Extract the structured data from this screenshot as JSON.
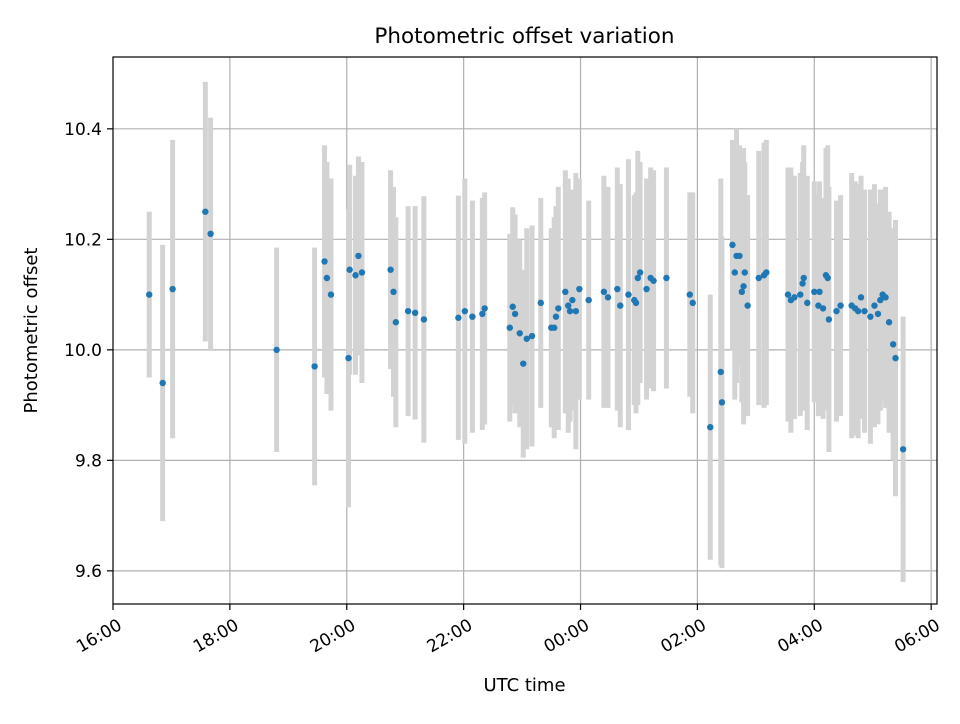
{
  "chart_data": {
    "type": "scatter",
    "title": "Photometric offset variation",
    "xlabel": "UTC time",
    "ylabel": "Photometric offset",
    "grid": true,
    "x_ticks": [
      "16:00",
      "18:00",
      "20:00",
      "22:00",
      "00:00",
      "02:00",
      "04:00",
      "06:00"
    ],
    "y_ticks": [
      "9.6",
      "9.8",
      "10.0",
      "10.2",
      "10.4"
    ],
    "x_unit": "hours since 16:00 UTC",
    "xlim": [
      0,
      14.1
    ],
    "ylim": [
      9.54,
      10.53
    ],
    "colors": {
      "points": "#1f77b4",
      "errorbars": "#d3d3d3",
      "grid": "#b0b0b0"
    },
    "points": [
      [
        0.62,
        10.1,
        0.15
      ],
      [
        0.85,
        9.94,
        0.25
      ],
      [
        1.02,
        10.11,
        0.27
      ],
      [
        1.58,
        10.25,
        0.235
      ],
      [
        1.67,
        10.21,
        0.21
      ],
      [
        2.8,
        10.0,
        0.185
      ],
      [
        3.45,
        9.97,
        0.215
      ],
      [
        3.62,
        10.16,
        0.21
      ],
      [
        3.66,
        10.13,
        0.21
      ],
      [
        3.73,
        10.1,
        0.21
      ],
      [
        4.03,
        9.985,
        0.27
      ],
      [
        4.05,
        10.145,
        0.19
      ],
      [
        4.15,
        10.135,
        0.18
      ],
      [
        4.2,
        10.17,
        0.18
      ],
      [
        4.26,
        10.14,
        0.2
      ],
      [
        4.75,
        10.145,
        0.18
      ],
      [
        4.8,
        10.105,
        0.19
      ],
      [
        4.84,
        10.05,
        0.19
      ],
      [
        5.05,
        10.07,
        0.19
      ],
      [
        5.17,
        10.067,
        0.193
      ],
      [
        5.32,
        10.055,
        0.223
      ],
      [
        5.91,
        10.058,
        0.221
      ],
      [
        6.02,
        10.07,
        0.24
      ],
      [
        6.15,
        10.06,
        0.21
      ],
      [
        6.32,
        10.065,
        0.21
      ],
      [
        6.36,
        10.075,
        0.21
      ],
      [
        6.79,
        10.04,
        0.17
      ],
      [
        6.84,
        10.078,
        0.18
      ],
      [
        6.88,
        10.065,
        0.18
      ],
      [
        6.96,
        10.03,
        0.17
      ],
      [
        7.02,
        9.975,
        0.17
      ],
      [
        7.08,
        10.02,
        0.2
      ],
      [
        7.17,
        10.025,
        0.2
      ],
      [
        7.32,
        10.085,
        0.19
      ],
      [
        7.5,
        10.04,
        0.18
      ],
      [
        7.55,
        10.04,
        0.2
      ],
      [
        7.58,
        10.06,
        0.2
      ],
      [
        7.62,
        10.075,
        0.22
      ],
      [
        7.74,
        10.105,
        0.22
      ],
      [
        7.79,
        10.08,
        0.23
      ],
      [
        7.82,
        10.07,
        0.2
      ],
      [
        7.86,
        10.09,
        0.2
      ],
      [
        7.92,
        10.07,
        0.25
      ],
      [
        7.98,
        10.11,
        0.2
      ],
      [
        8.14,
        10.09,
        0.18
      ],
      [
        8.4,
        10.105,
        0.21
      ],
      [
        8.47,
        10.095,
        0.2
      ],
      [
        8.63,
        10.11,
        0.22
      ],
      [
        8.68,
        10.08,
        0.22
      ],
      [
        8.82,
        10.1,
        0.245
      ],
      [
        8.92,
        10.09,
        0.19
      ],
      [
        8.95,
        10.085,
        0.2
      ],
      [
        8.98,
        10.13,
        0.23
      ],
      [
        9.02,
        10.14,
        0.2
      ],
      [
        9.13,
        10.11,
        0.2
      ],
      [
        9.2,
        10.13,
        0.2
      ],
      [
        9.25,
        10.125,
        0.2
      ],
      [
        9.47,
        10.13,
        0.2
      ],
      [
        9.87,
        10.1,
        0.185
      ],
      [
        9.92,
        10.085,
        0.2
      ],
      [
        10.22,
        9.86,
        0.24
      ],
      [
        10.4,
        9.96,
        0.35
      ],
      [
        10.42,
        9.905,
        0.3
      ],
      [
        10.6,
        10.19,
        0.19
      ],
      [
        10.64,
        10.14,
        0.23
      ],
      [
        10.67,
        10.17,
        0.23
      ],
      [
        10.72,
        10.17,
        0.2
      ],
      [
        10.76,
        10.105,
        0.2
      ],
      [
        10.79,
        10.115,
        0.25
      ],
      [
        10.81,
        10.14,
        0.2
      ],
      [
        10.86,
        10.08,
        0.2
      ],
      [
        11.05,
        10.13,
        0.23
      ],
      [
        11.14,
        10.135,
        0.24
      ],
      [
        11.18,
        10.14,
        0.24
      ],
      [
        11.55,
        10.1,
        0.23
      ],
      [
        11.6,
        10.09,
        0.24
      ],
      [
        11.66,
        10.095,
        0.22
      ],
      [
        11.76,
        10.1,
        0.22
      ],
      [
        11.8,
        10.12,
        0.22
      ],
      [
        11.82,
        10.13,
        0.24
      ],
      [
        11.88,
        10.085,
        0.23
      ],
      [
        12.0,
        10.105,
        0.2
      ],
      [
        12.07,
        10.08,
        0.2
      ],
      [
        12.09,
        10.105,
        0.2
      ],
      [
        12.15,
        10.075,
        0.2
      ],
      [
        12.2,
        10.135,
        0.23
      ],
      [
        12.23,
        10.13,
        0.24
      ],
      [
        12.25,
        10.055,
        0.24
      ],
      [
        12.38,
        10.07,
        0.2
      ],
      [
        12.45,
        10.08,
        0.2
      ],
      [
        12.64,
        10.08,
        0.24
      ],
      [
        12.7,
        10.075,
        0.23
      ],
      [
        12.75,
        10.07,
        0.23
      ],
      [
        12.8,
        10.095,
        0.22
      ],
      [
        12.86,
        10.07,
        0.22
      ],
      [
        12.96,
        10.06,
        0.23
      ],
      [
        13.03,
        10.08,
        0.22
      ],
      [
        13.09,
        10.065,
        0.2
      ],
      [
        13.13,
        10.09,
        0.2
      ],
      [
        13.17,
        10.1,
        0.19
      ],
      [
        13.22,
        10.095,
        0.2
      ],
      [
        13.28,
        10.05,
        0.2
      ],
      [
        13.35,
        10.01,
        0.21
      ],
      [
        13.39,
        9.985,
        0.25
      ],
      [
        13.52,
        9.82,
        0.24
      ]
    ]
  }
}
